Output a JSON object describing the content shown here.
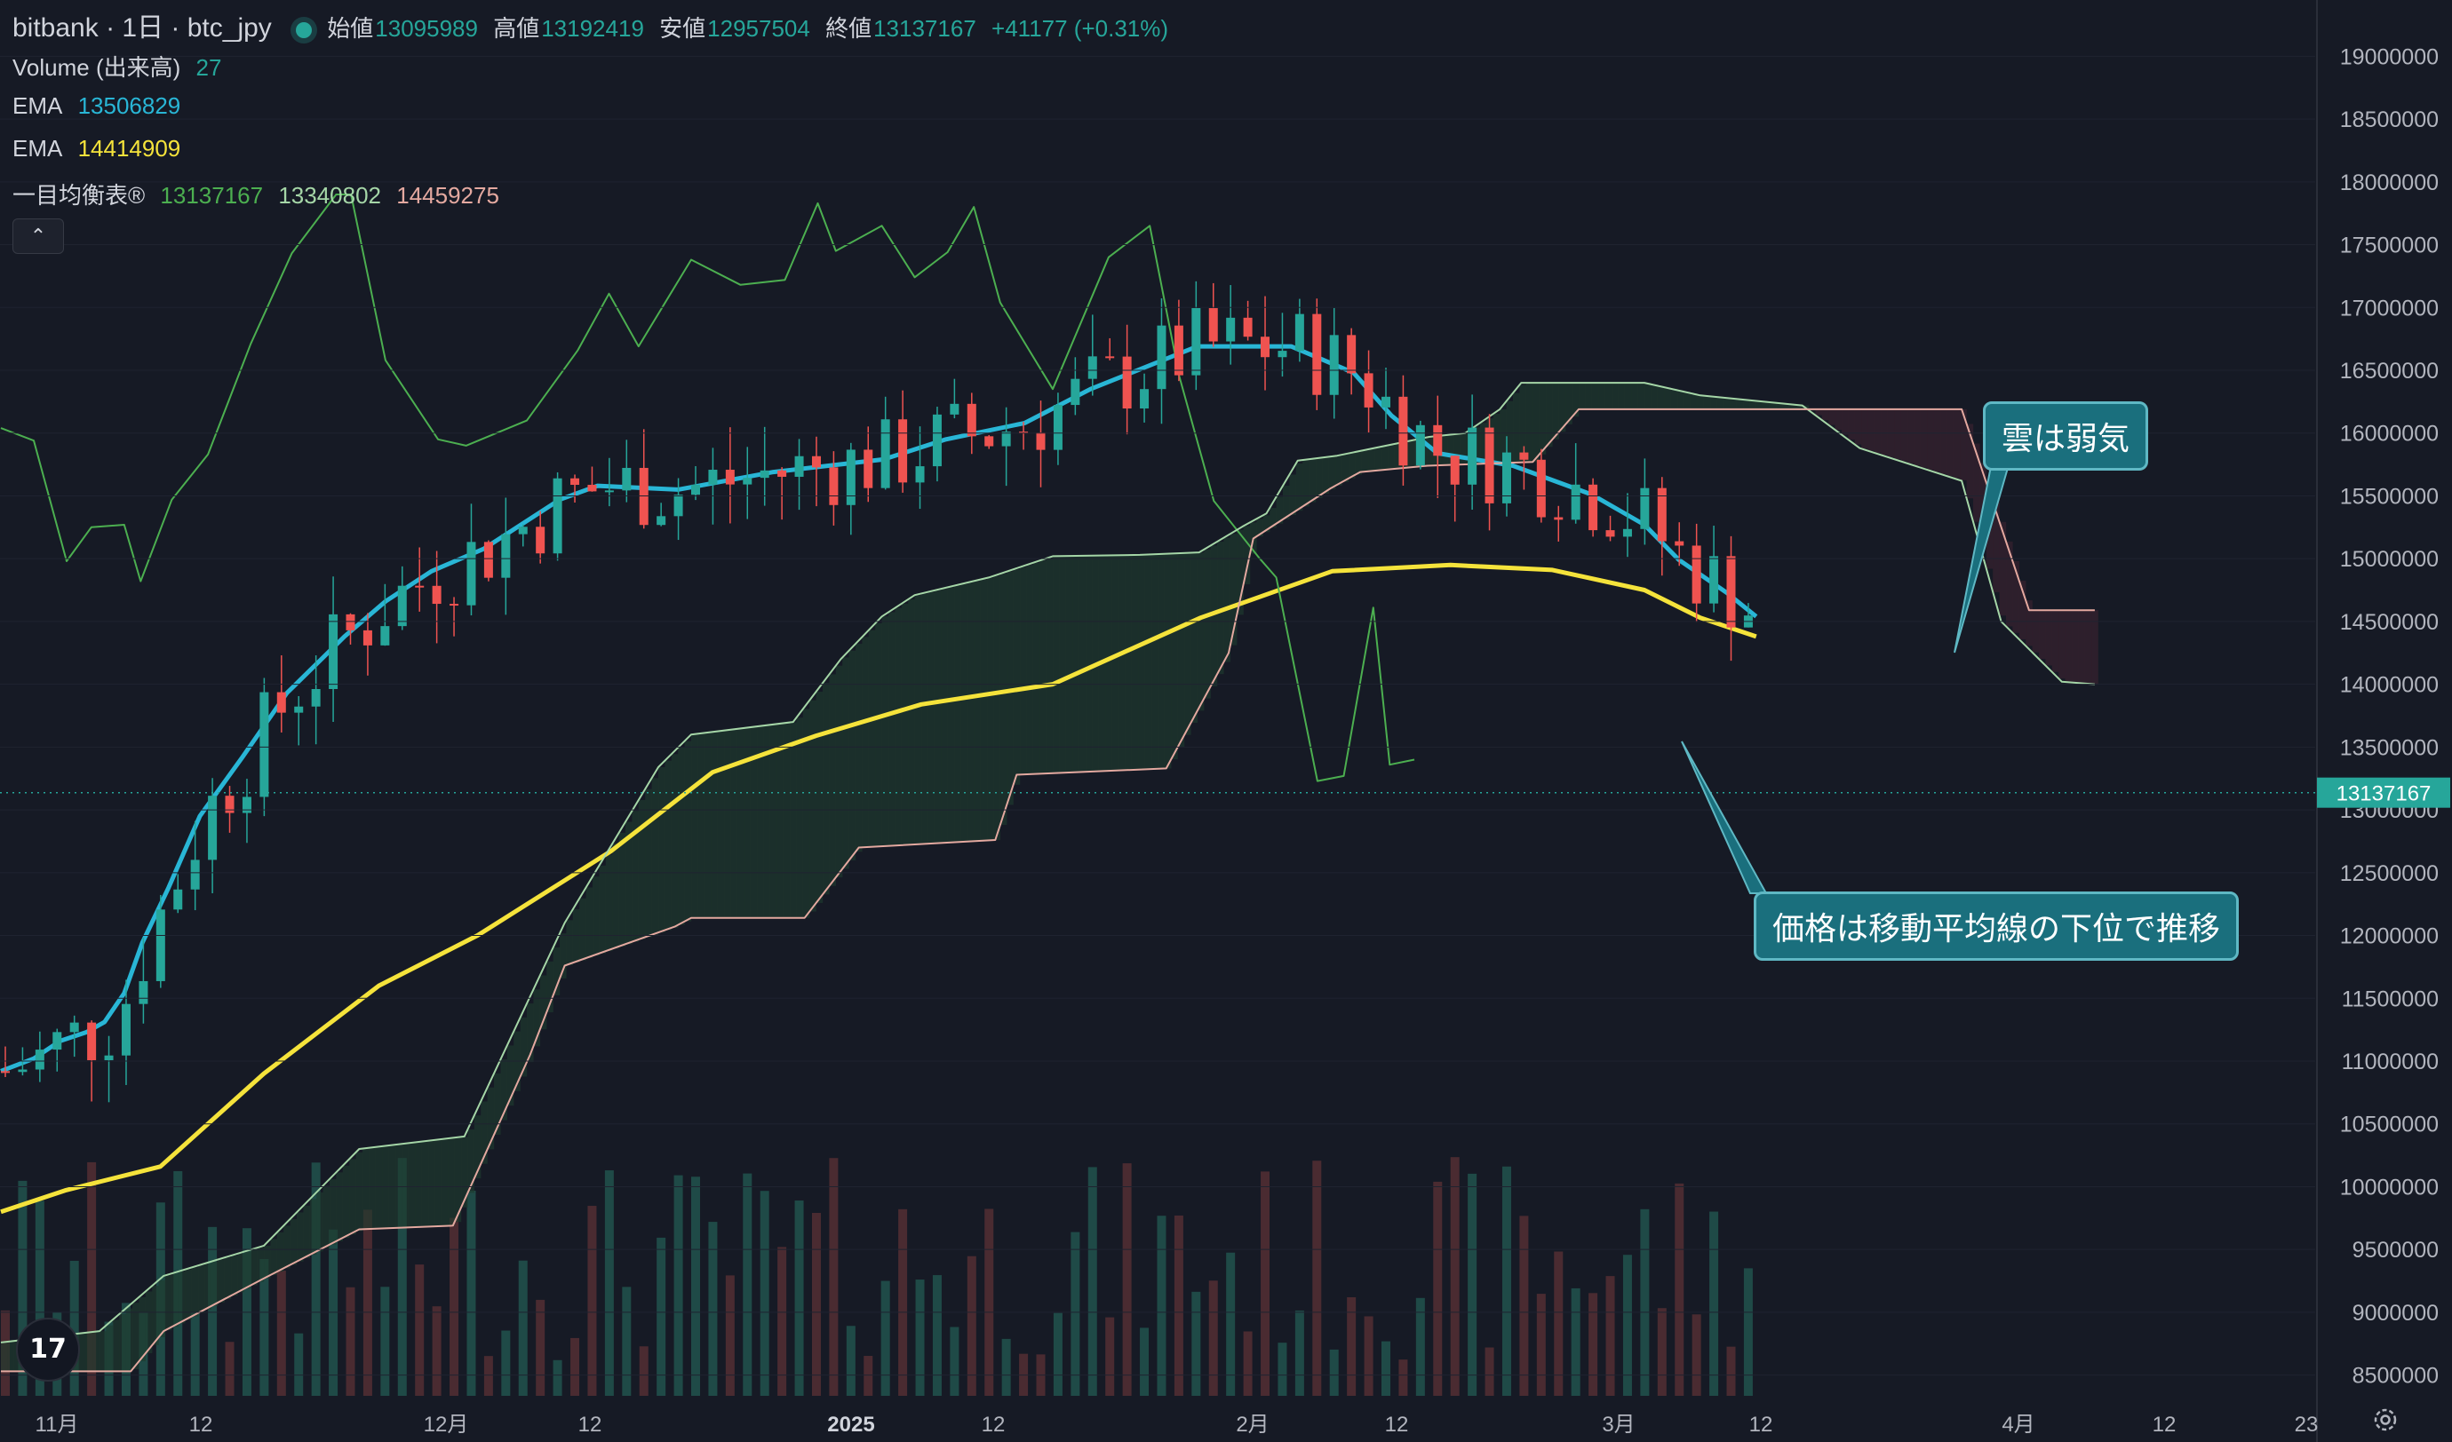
{
  "header": {
    "symbol": "bitbank · 1日 · btc_jpy",
    "open_label": "始値",
    "open": "13095989",
    "high_label": "高値",
    "high": "13192419",
    "low_label": "安値",
    "low": "12957504",
    "close_label": "終値",
    "close": "13137167",
    "change": "+41177 (+0.31%)"
  },
  "indicators": {
    "volume_label": "Volume (出来高)",
    "volume_value": "27",
    "ema1_label": "EMA",
    "ema1_value": "13506829",
    "ema2_label": "EMA",
    "ema2_value": "14414909",
    "ichimoku_label": "一目均衡表®",
    "ichimoku_v1": "13137167",
    "ichimoku_v2": "13340802",
    "ichimoku_v3": "14459275"
  },
  "annotations": {
    "cloud": "雲は弱気",
    "price": "価格は移動平均線の下位で推移"
  },
  "price_tag": "13137167",
  "icons": [
    "chevron-up-icon",
    "tradingview-logo",
    "settings-icon"
  ],
  "colors": {
    "background": "#161a25",
    "up": "#26a69a",
    "down": "#ef5350",
    "ema_fast": "#29b6d6",
    "ema_slow": "#f5e33b",
    "chikou": "#4caf50",
    "span_a": "#a5d6a7",
    "span_b": "#e4a9a0"
  },
  "chart_data": {
    "type": "candlestick",
    "y_axis": {
      "min": 8250000,
      "max": 19250000,
      "ticks": [
        8500000,
        9000000,
        9500000,
        10000000,
        10500000,
        11000000,
        11500000,
        12000000,
        12500000,
        13000000,
        13500000,
        14000000,
        14500000,
        15000000,
        15500000,
        16000000,
        16500000,
        17000000,
        17500000,
        18000000,
        18500000,
        19000000
      ],
      "position": "right"
    },
    "x_axis": {
      "labels": [
        "11月",
        "12",
        "12月",
        "12",
        "2025",
        "12",
        "2月",
        "12",
        "3月",
        "12",
        "4月",
        "12",
        "23"
      ]
    },
    "current_price": 13137167,
    "series": [
      {
        "name": "EMA",
        "value": 13506829,
        "points": [
          [
            0,
            10920000
          ],
          [
            20,
            11020000
          ],
          [
            36,
            11160000
          ],
          [
            52,
            11230000
          ],
          [
            63,
            11310000
          ],
          [
            75,
            11540000
          ],
          [
            86,
            11940000
          ],
          [
            102,
            12380000
          ],
          [
            121,
            12950000
          ],
          [
            147,
            13420000
          ],
          [
            174,
            13930000
          ],
          [
            209,
            14380000
          ],
          [
            234,
            14660000
          ],
          [
            262,
            14900000
          ],
          [
            294,
            15080000
          ],
          [
            340,
            15470000
          ],
          [
            363,
            15580000
          ],
          [
            412,
            15550000
          ],
          [
            470,
            15690000
          ],
          [
            537,
            15790000
          ],
          [
            575,
            15950000
          ],
          [
            623,
            16080000
          ],
          [
            663,
            16350000
          ],
          [
            728,
            16690000
          ],
          [
            785,
            16690000
          ],
          [
            823,
            16480000
          ],
          [
            846,
            16140000
          ],
          [
            874,
            15840000
          ],
          [
            920,
            15740000
          ],
          [
            968,
            15510000
          ],
          [
            1000,
            15270000
          ],
          [
            1021,
            14990000
          ],
          [
            1050,
            14730000
          ],
          [
            1068,
            14540000
          ]
        ]
      },
      {
        "name": "EMA",
        "value": 14414909,
        "points": [
          [
            0,
            9800000
          ],
          [
            39,
            9970000
          ],
          [
            97,
            10160000
          ],
          [
            160,
            10900000
          ],
          [
            230,
            11600000
          ],
          [
            290,
            12000000
          ],
          [
            371,
            12670000
          ],
          [
            433,
            13300000
          ],
          [
            496,
            13590000
          ],
          [
            560,
            13840000
          ],
          [
            640,
            14000000
          ],
          [
            730,
            14530000
          ],
          [
            810,
            14900000
          ],
          [
            882,
            14950000
          ],
          [
            944,
            14910000
          ],
          [
            1000,
            14750000
          ],
          [
            1034,
            14530000
          ],
          [
            1068,
            14380000
          ]
        ]
      },
      {
        "name": "一目均衡表 遅行スパン",
        "points": [
          [
            0,
            16040000
          ],
          [
            20,
            15940000
          ],
          [
            40,
            14980000
          ],
          [
            55,
            15250000
          ],
          [
            75,
            15270000
          ],
          [
            85,
            14820000
          ],
          [
            104,
            15470000
          ],
          [
            126,
            15830000
          ],
          [
            152,
            16710000
          ],
          [
            177,
            17430000
          ],
          [
            204,
            17900000
          ],
          [
            213,
            17900000
          ],
          [
            234,
            16580000
          ],
          [
            266,
            15950000
          ],
          [
            283,
            15900000
          ],
          [
            320,
            16100000
          ],
          [
            351,
            16660000
          ],
          [
            370,
            17110000
          ],
          [
            388,
            16690000
          ],
          [
            420,
            17380000
          ],
          [
            450,
            17180000
          ],
          [
            477,
            17220000
          ],
          [
            497,
            17830000
          ],
          [
            508,
            17450000
          ],
          [
            536,
            17650000
          ],
          [
            556,
            17240000
          ],
          [
            576,
            17440000
          ],
          [
            592,
            17800000
          ],
          [
            608,
            17040000
          ],
          [
            640,
            16350000
          ],
          [
            674,
            17400000
          ],
          [
            699,
            17650000
          ],
          [
            717,
            16450000
          ],
          [
            738,
            15460000
          ],
          [
            766,
            15000000
          ],
          [
            776,
            14850000
          ],
          [
            801,
            13230000
          ],
          [
            817,
            13270000
          ],
          [
            835,
            14610000
          ],
          [
            845,
            13360000
          ],
          [
            860,
            13400000
          ]
        ]
      },
      {
        "name": "先行スパン1",
        "points": [
          [
            0,
            8760000
          ],
          [
            60,
            8850000
          ],
          [
            99,
            9290000
          ],
          [
            160,
            9530000
          ],
          [
            218,
            10300000
          ],
          [
            282,
            10400000
          ],
          [
            343,
            12100000
          ],
          [
            400,
            13340000
          ],
          [
            420,
            13600000
          ],
          [
            482,
            13700000
          ],
          [
            511,
            14200000
          ],
          [
            536,
            14540000
          ],
          [
            556,
            14710000
          ],
          [
            601,
            14850000
          ],
          [
            640,
            15020000
          ],
          [
            693,
            15030000
          ],
          [
            729,
            15050000
          ],
          [
            756,
            15260000
          ],
          [
            770,
            15360000
          ],
          [
            789,
            15780000
          ],
          [
            813,
            15820000
          ],
          [
            869,
            15970000
          ],
          [
            891,
            16000000
          ],
          [
            912,
            16190000
          ],
          [
            925,
            16400000
          ],
          [
            1000,
            16400000
          ],
          [
            1034,
            16300000
          ],
          [
            1096,
            16220000
          ],
          [
            1131,
            15880000
          ],
          [
            1193,
            15620000
          ],
          [
            1217,
            14500000
          ],
          [
            1254,
            14020000
          ],
          [
            1274,
            14000000
          ]
        ]
      },
      {
        "name": "先行スパン2",
        "points": [
          [
            0,
            8530000
          ],
          [
            79,
            8530000
          ],
          [
            99,
            8850000
          ],
          [
            160,
            9270000
          ],
          [
            218,
            9660000
          ],
          [
            275,
            9690000
          ],
          [
            322,
            11050000
          ],
          [
            343,
            11760000
          ],
          [
            410,
            12070000
          ],
          [
            420,
            12140000
          ],
          [
            489,
            12140000
          ],
          [
            522,
            12700000
          ],
          [
            605,
            12760000
          ],
          [
            618,
            13280000
          ],
          [
            709,
            13330000
          ],
          [
            747,
            14250000
          ],
          [
            762,
            15160000
          ],
          [
            809,
            15560000
          ],
          [
            827,
            15690000
          ],
          [
            868,
            15740000
          ],
          [
            932,
            15770000
          ],
          [
            960,
            16190000
          ],
          [
            1034,
            16190000
          ],
          [
            1193,
            16190000
          ],
          [
            1234,
            14590000
          ],
          [
            1274,
            14590000
          ]
        ]
      }
    ]
  }
}
